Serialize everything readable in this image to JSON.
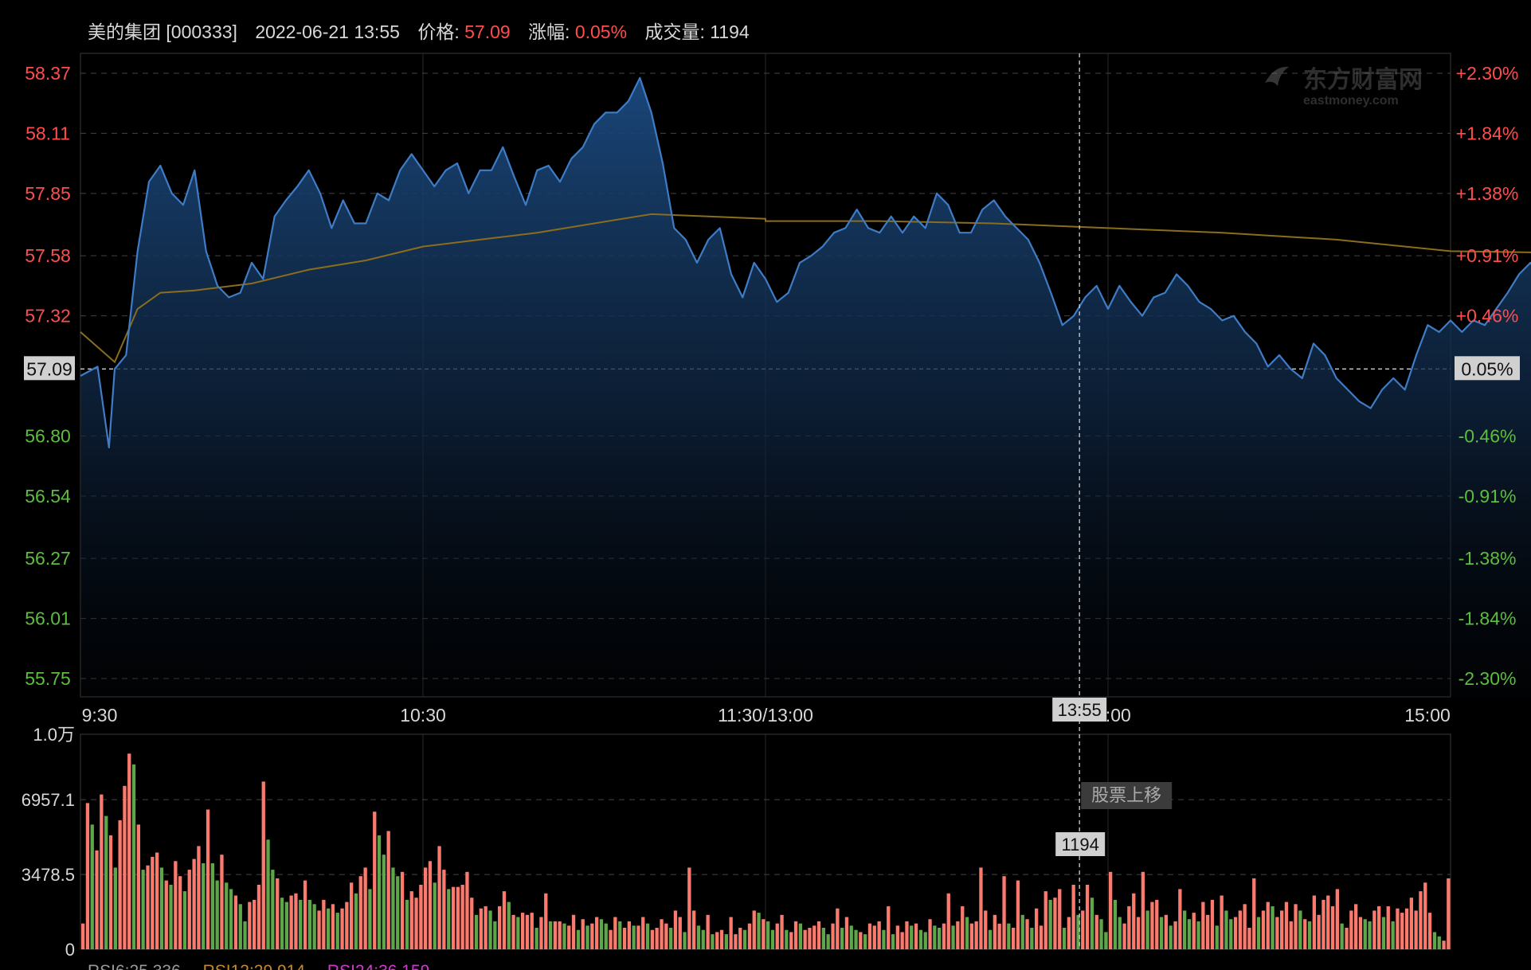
{
  "header": {
    "stock": "美的集团 [000333]",
    "datetime": "2022-06-21 13:55",
    "price_label": "价格:",
    "price": "57.09",
    "change_label": "涨幅:",
    "change": "0.05%",
    "volume_label": "成交量:",
    "volume": "1194"
  },
  "watermark": {
    "cn": "东方财富网",
    "en": "eastmoney.com"
  },
  "colors": {
    "up": "#ff4d4d",
    "down": "#5cbd3f",
    "price_line": "#3f7cc6",
    "avg_line": "#8a6d1d",
    "vol_up": "#fb7a6e",
    "vol_down": "#5ea64a",
    "grid": "#444444"
  },
  "crosshair": {
    "time": "13:55",
    "price": "57.09",
    "pct": "0.05%",
    "volume": "1194"
  },
  "tooltip": "股票上移",
  "footer_legend": [
    "RSI6:25.336",
    "RSI12:29.914",
    "RSI24:36.159"
  ],
  "chart_data": {
    "type": "line",
    "price_axis": {
      "ticks": [
        "58.37",
        "58.11",
        "57.85",
        "57.58",
        "57.32",
        "57.09",
        "56.80",
        "56.54",
        "56.27",
        "56.01",
        "55.75"
      ],
      "ylim": [
        55.75,
        58.37
      ],
      "prev_close": 57.06
    },
    "pct_axis": {
      "ticks": [
        "+2.30%",
        "+1.84%",
        "+1.38%",
        "+0.91%",
        "+0.46%",
        "0.05%",
        "-0.46%",
        "-0.91%",
        "-1.38%",
        "-1.84%",
        "-2.30%"
      ]
    },
    "x_ticks": [
      "9:30",
      "10:30",
      "11:30/13:00",
      "14:00",
      "15:00"
    ],
    "price_series": [
      [
        "09:30",
        57.06
      ],
      [
        "09:33",
        57.1
      ],
      [
        "09:35",
        56.75
      ],
      [
        "09:36",
        57.09
      ],
      [
        "09:38",
        57.15
      ],
      [
        "09:40",
        57.6
      ],
      [
        "09:42",
        57.9
      ],
      [
        "09:44",
        57.97
      ],
      [
        "09:46",
        57.85
      ],
      [
        "09:48",
        57.8
      ],
      [
        "09:50",
        57.95
      ],
      [
        "09:52",
        57.6
      ],
      [
        "09:54",
        57.45
      ],
      [
        "09:56",
        57.4
      ],
      [
        "09:58",
        57.42
      ],
      [
        "10:00",
        57.55
      ],
      [
        "10:02",
        57.48
      ],
      [
        "10:04",
        57.75
      ],
      [
        "10:06",
        57.82
      ],
      [
        "10:08",
        57.88
      ],
      [
        "10:10",
        57.95
      ],
      [
        "10:12",
        57.85
      ],
      [
        "10:14",
        57.7
      ],
      [
        "10:16",
        57.82
      ],
      [
        "10:18",
        57.72
      ],
      [
        "10:20",
        57.72
      ],
      [
        "10:22",
        57.85
      ],
      [
        "10:24",
        57.82
      ],
      [
        "10:26",
        57.95
      ],
      [
        "10:28",
        58.02
      ],
      [
        "10:30",
        57.95
      ],
      [
        "10:32",
        57.88
      ],
      [
        "10:34",
        57.95
      ],
      [
        "10:36",
        57.98
      ],
      [
        "10:38",
        57.85
      ],
      [
        "10:40",
        57.95
      ],
      [
        "10:42",
        57.95
      ],
      [
        "10:44",
        58.05
      ],
      [
        "10:46",
        57.92
      ],
      [
        "10:48",
        57.8
      ],
      [
        "10:50",
        57.95
      ],
      [
        "10:52",
        57.97
      ],
      [
        "10:54",
        57.9
      ],
      [
        "10:56",
        58.0
      ],
      [
        "10:58",
        58.05
      ],
      [
        "11:00",
        58.15
      ],
      [
        "11:02",
        58.2
      ],
      [
        "11:04",
        58.2
      ],
      [
        "11:06",
        58.25
      ],
      [
        "11:08",
        58.35
      ],
      [
        "11:10",
        58.2
      ],
      [
        "11:12",
        57.98
      ],
      [
        "11:14",
        57.7
      ],
      [
        "11:16",
        57.65
      ],
      [
        "11:18",
        57.55
      ],
      [
        "11:20",
        57.65
      ],
      [
        "11:22",
        57.7
      ],
      [
        "11:24",
        57.5
      ],
      [
        "11:26",
        57.4
      ],
      [
        "11:28",
        57.55
      ],
      [
        "11:30",
        57.48
      ],
      [
        "13:00",
        57.48
      ],
      [
        "13:02",
        57.38
      ],
      [
        "13:04",
        57.42
      ],
      [
        "13:06",
        57.55
      ],
      [
        "13:08",
        57.58
      ],
      [
        "13:10",
        57.62
      ],
      [
        "13:12",
        57.68
      ],
      [
        "13:14",
        57.7
      ],
      [
        "13:16",
        57.78
      ],
      [
        "13:18",
        57.7
      ],
      [
        "13:20",
        57.68
      ],
      [
        "13:22",
        57.75
      ],
      [
        "13:24",
        57.68
      ],
      [
        "13:26",
        57.75
      ],
      [
        "13:28",
        57.7
      ],
      [
        "13:30",
        57.85
      ],
      [
        "13:32",
        57.8
      ],
      [
        "13:34",
        57.68
      ],
      [
        "13:36",
        57.68
      ],
      [
        "13:38",
        57.78
      ],
      [
        "13:40",
        57.82
      ],
      [
        "13:42",
        57.75
      ],
      [
        "13:44",
        57.7
      ],
      [
        "13:46",
        57.65
      ],
      [
        "13:48",
        57.55
      ],
      [
        "13:50",
        57.42
      ],
      [
        "13:52",
        57.28
      ],
      [
        "13:54",
        57.32
      ],
      [
        "13:56",
        57.4
      ],
      [
        "13:58",
        57.45
      ],
      [
        "14:00",
        57.35
      ],
      [
        "14:02",
        57.45
      ],
      [
        "14:04",
        57.38
      ],
      [
        "14:06",
        57.32
      ],
      [
        "14:08",
        57.4
      ],
      [
        "14:10",
        57.42
      ],
      [
        "14:12",
        57.5
      ],
      [
        "14:14",
        57.45
      ],
      [
        "14:16",
        57.38
      ],
      [
        "14:18",
        57.35
      ],
      [
        "14:20",
        57.3
      ],
      [
        "14:22",
        57.32
      ],
      [
        "14:24",
        57.25
      ],
      [
        "14:26",
        57.2
      ],
      [
        "14:28",
        57.1
      ],
      [
        "14:30",
        57.15
      ],
      [
        "14:32",
        57.09
      ],
      [
        "14:34",
        57.05
      ],
      [
        "14:36",
        57.2
      ],
      [
        "14:38",
        57.15
      ],
      [
        "14:40",
        57.05
      ],
      [
        "14:42",
        57.0
      ],
      [
        "14:44",
        56.95
      ],
      [
        "14:46",
        56.92
      ],
      [
        "14:48",
        57.0
      ],
      [
        "14:50",
        57.05
      ],
      [
        "14:52",
        57.0
      ],
      [
        "14:54",
        57.15
      ],
      [
        "14:56",
        57.28
      ],
      [
        "14:58",
        57.25
      ],
      [
        "15:00",
        57.3
      ],
      [
        "15:02",
        57.25
      ],
      [
        "15:04",
        57.3
      ],
      [
        "15:06",
        57.28
      ],
      [
        "15:08",
        57.35
      ],
      [
        "15:10",
        57.42
      ],
      [
        "15:12",
        57.5
      ],
      [
        "15:14",
        57.55
      ],
      [
        "15:16",
        57.48
      ],
      [
        "15:18",
        57.52
      ],
      [
        "15:20",
        57.42
      ],
      [
        "15:22",
        57.38
      ],
      [
        "15:24",
        57.3
      ],
      [
        "15:26",
        57.28
      ],
      [
        "15:28",
        57.27
      ]
    ],
    "avg_series": [
      [
        "09:30",
        57.25
      ],
      [
        "09:36",
        57.12
      ],
      [
        "09:40",
        57.35
      ],
      [
        "09:44",
        57.42
      ],
      [
        "09:50",
        57.43
      ],
      [
        "10:00",
        57.46
      ],
      [
        "10:10",
        57.52
      ],
      [
        "10:20",
        57.56
      ],
      [
        "10:30",
        57.62
      ],
      [
        "10:40",
        57.65
      ],
      [
        "10:50",
        57.68
      ],
      [
        "11:00",
        57.72
      ],
      [
        "11:10",
        57.76
      ],
      [
        "11:20",
        57.75
      ],
      [
        "11:30",
        57.74
      ],
      [
        "13:00",
        57.73
      ],
      [
        "13:20",
        57.73
      ],
      [
        "13:40",
        57.72
      ],
      [
        "14:00",
        57.7
      ],
      [
        "14:20",
        57.68
      ],
      [
        "14:40",
        57.65
      ],
      [
        "15:00",
        57.6
      ],
      [
        "15:28",
        57.59
      ]
    ],
    "volume_axis": {
      "ticks": [
        "1.0万",
        "6957.1",
        "3478.5",
        "0"
      ],
      "ylim": [
        0,
        10000
      ]
    },
    "volume": [
      1200,
      6800,
      5800,
      4600,
      7200,
      6200,
      5300,
      3800,
      6000,
      7600,
      9100,
      8600,
      5800,
      3700,
      3900,
      4300,
      4500,
      3800,
      3200,
      3000,
      4100,
      3400,
      2700,
      3700,
      4200,
      4800,
      4000,
      6500,
      4000,
      3200,
      4400,
      3100,
      2800,
      2500,
      2100,
      1300,
      2200,
      2300,
      3000,
      7800,
      5100,
      3700,
      3300,
      2400,
      2200,
      2500,
      2600,
      2300,
      3200,
      2300,
      2100,
      1800,
      2300,
      1900,
      2100,
      1700,
      1900,
      2200,
      3100,
      2600,
      3400,
      3800,
      2800,
      6400,
      5300,
      4400,
      5500,
      3800,
      3400,
      3600,
      2300,
      2700,
      2400,
      3000,
      3800,
      4100,
      3100,
      4800,
      3700,
      2800,
      2900,
      2900,
      3000,
      3600,
      2400,
      1600,
      1900,
      2000,
      1800,
      1300,
      2000,
      2700,
      2200,
      1600,
      1500,
      1700,
      1600,
      1700,
      1000,
      1500,
      2600,
      1300,
      1300,
      1300,
      1200,
      1100,
      1600,
      900,
      1400,
      1100,
      1200,
      1500,
      1400,
      1200,
      900,
      1500,
      1300,
      1000,
      1300,
      1100,
      1100,
      1500,
      1200,
      900,
      1000,
      1400,
      1200,
      1000,
      1800,
      1500,
      800,
      3800,
      1800,
      1100,
      900,
      1600,
      700,
      800,
      900,
      700,
      1500,
      700,
      1000,
      900,
      1200,
      1800,
      1700,
      1400,
      1300,
      900,
      1200,
      1600,
      900,
      800,
      1300,
      1200,
      900,
      1000,
      1100,
      1300,
      1000,
      700,
      1200,
      1900,
      1000,
      1500,
      1100,
      900,
      800,
      700,
      1200,
      1100,
      1300,
      900,
      2000,
      700,
      1100,
      800,
      1300,
      1100,
      1200,
      900,
      800,
      1400,
      1100,
      1000,
      1200,
      2600,
      1100,
      1300,
      2000,
      1500,
      1200,
      1300,
      3800,
      1800,
      900,
      1600,
      1194,
      3400,
      1200,
      1000,
      3200,
      1600,
      1400,
      1000,
      1900,
      1100,
      2700,
      2300,
      2400,
      2800,
      1000,
      1500,
      3000,
      1600,
      1800,
      3000,
      2400,
      1600,
      1400,
      800,
      3600,
      2300,
      1500,
      1200,
      2000,
      2600,
      1500,
      3600,
      1800,
      2200,
      2300,
      1500,
      1600,
      1100,
      1300,
      2800,
      1800,
      1400,
      1700,
      1300,
      2200,
      1600,
      2300,
      1100,
      2500,
      1800,
      1400,
      1500,
      1800,
      2100,
      1000,
      3300,
      1500,
      1800,
      2200,
      2000,
      1500,
      1800,
      2200,
      1300,
      2100,
      1800,
      1400,
      1300,
      2500,
      1600,
      2300,
      2500,
      2000,
      2800,
      1200,
      1000,
      1800,
      2100,
      1500,
      1400,
      1300,
      1800,
      2000,
      1500,
      2000,
      1300,
      1900,
      1700,
      1900,
      2400,
      1800,
      2700,
      3100,
      1700,
      800,
      600,
      400,
      3300
    ]
  }
}
